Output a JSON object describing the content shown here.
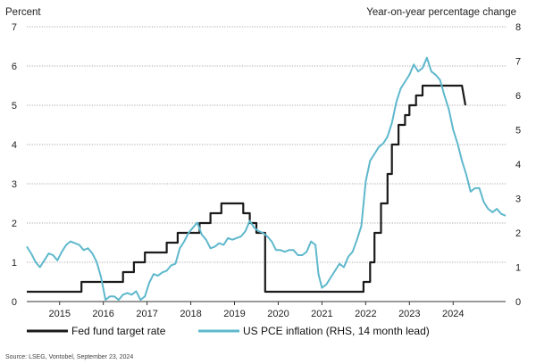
{
  "chart_data": {
    "type": "line",
    "left_axis": {
      "title": "Percent",
      "min": 0,
      "max": 7,
      "ticks": [
        "0",
        "1",
        "2",
        "3",
        "4",
        "5",
        "6",
        "7"
      ]
    },
    "right_axis": {
      "title": "Year-on-year percentage change",
      "min": 0,
      "max": 8,
      "ticks": [
        "0",
        "1",
        "2",
        "3",
        "4",
        "5",
        "6",
        "7",
        "8"
      ]
    },
    "x_axis": {
      "min": 2014.25,
      "max": 2025.2,
      "tick_labels": [
        "2015",
        "2016",
        "2017",
        "2018",
        "2019",
        "2020",
        "2021",
        "2022",
        "2023",
        "2024"
      ],
      "tick_positions": [
        2015,
        2016,
        2017,
        2018,
        2019,
        2020,
        2021,
        2022,
        2023,
        2024
      ]
    },
    "grid": "horizontal dotted",
    "series": [
      {
        "name": "Fed fund target rate",
        "axis": "left",
        "color": "#1a1a1a",
        "points": [
          [
            2014.25,
            0.25
          ],
          [
            2015.5,
            0.25
          ],
          [
            2015.5,
            0.5
          ],
          [
            2016.45,
            0.5
          ],
          [
            2016.45,
            0.75
          ],
          [
            2016.7,
            0.75
          ],
          [
            2016.7,
            1.0
          ],
          [
            2016.95,
            1.0
          ],
          [
            2016.95,
            1.25
          ],
          [
            2017.45,
            1.25
          ],
          [
            2017.45,
            1.5
          ],
          [
            2017.7,
            1.5
          ],
          [
            2017.7,
            1.75
          ],
          [
            2018.2,
            1.75
          ],
          [
            2018.2,
            2.0
          ],
          [
            2018.45,
            2.0
          ],
          [
            2018.45,
            2.25
          ],
          [
            2018.7,
            2.25
          ],
          [
            2018.7,
            2.5
          ],
          [
            2019.2,
            2.5
          ],
          [
            2019.2,
            2.25
          ],
          [
            2019.35,
            2.25
          ],
          [
            2019.35,
            2.0
          ],
          [
            2019.5,
            2.0
          ],
          [
            2019.5,
            1.75
          ],
          [
            2019.7,
            1.75
          ],
          [
            2019.7,
            0.25
          ],
          [
            2021.95,
            0.25
          ],
          [
            2021.95,
            0.5
          ],
          [
            2022.1,
            0.5
          ],
          [
            2022.1,
            1.0
          ],
          [
            2022.2,
            1.0
          ],
          [
            2022.2,
            1.75
          ],
          [
            2022.35,
            1.75
          ],
          [
            2022.35,
            2.5
          ],
          [
            2022.5,
            2.5
          ],
          [
            2022.5,
            3.25
          ],
          [
            2022.6,
            3.25
          ],
          [
            2022.6,
            4.0
          ],
          [
            2022.75,
            4.0
          ],
          [
            2022.75,
            4.5
          ],
          [
            2022.9,
            4.5
          ],
          [
            2022.9,
            4.75
          ],
          [
            2023.0,
            4.75
          ],
          [
            2023.0,
            5.0
          ],
          [
            2023.15,
            5.0
          ],
          [
            2023.15,
            5.25
          ],
          [
            2023.3,
            5.25
          ],
          [
            2023.3,
            5.5
          ],
          [
            2024.2,
            5.5
          ],
          [
            2024.28,
            5.0
          ]
        ]
      },
      {
        "name": "US PCE inflation (RHS, 14 month lead)",
        "axis": "right",
        "color": "#5eb8cc",
        "points": [
          [
            2014.25,
            1.6
          ],
          [
            2014.35,
            1.4
          ],
          [
            2014.45,
            1.15
          ],
          [
            2014.55,
            1.0
          ],
          [
            2014.65,
            1.2
          ],
          [
            2014.75,
            1.4
          ],
          [
            2014.85,
            1.35
          ],
          [
            2014.95,
            1.2
          ],
          [
            2015.05,
            1.45
          ],
          [
            2015.15,
            1.65
          ],
          [
            2015.25,
            1.75
          ],
          [
            2015.35,
            1.7
          ],
          [
            2015.45,
            1.65
          ],
          [
            2015.55,
            1.5
          ],
          [
            2015.65,
            1.55
          ],
          [
            2015.75,
            1.4
          ],
          [
            2015.85,
            1.15
          ],
          [
            2015.95,
            0.7
          ],
          [
            2016.05,
            0.05
          ],
          [
            2016.15,
            0.15
          ],
          [
            2016.25,
            0.15
          ],
          [
            2016.35,
            0.05
          ],
          [
            2016.45,
            0.2
          ],
          [
            2016.55,
            0.25
          ],
          [
            2016.65,
            0.2
          ],
          [
            2016.75,
            0.3
          ],
          [
            2016.85,
            0.05
          ],
          [
            2016.95,
            0.15
          ],
          [
            2017.05,
            0.55
          ],
          [
            2017.15,
            0.8
          ],
          [
            2017.25,
            0.75
          ],
          [
            2017.35,
            0.85
          ],
          [
            2017.45,
            0.9
          ],
          [
            2017.55,
            1.05
          ],
          [
            2017.65,
            1.1
          ],
          [
            2017.75,
            1.55
          ],
          [
            2017.85,
            1.75
          ],
          [
            2017.95,
            2.0
          ],
          [
            2018.05,
            2.15
          ],
          [
            2018.15,
            2.3
          ],
          [
            2018.25,
            1.95
          ],
          [
            2018.35,
            1.8
          ],
          [
            2018.45,
            1.55
          ],
          [
            2018.55,
            1.6
          ],
          [
            2018.65,
            1.7
          ],
          [
            2018.75,
            1.65
          ],
          [
            2018.85,
            1.85
          ],
          [
            2018.95,
            1.8
          ],
          [
            2019.05,
            1.85
          ],
          [
            2019.15,
            1.9
          ],
          [
            2019.25,
            2.05
          ],
          [
            2019.35,
            2.35
          ],
          [
            2019.45,
            2.15
          ],
          [
            2019.55,
            2.05
          ],
          [
            2019.65,
            2.0
          ],
          [
            2019.75,
            1.9
          ],
          [
            2019.85,
            1.75
          ],
          [
            2019.95,
            1.5
          ],
          [
            2020.05,
            1.5
          ],
          [
            2020.15,
            1.45
          ],
          [
            2020.25,
            1.5
          ],
          [
            2020.35,
            1.5
          ],
          [
            2020.45,
            1.35
          ],
          [
            2020.55,
            1.35
          ],
          [
            2020.65,
            1.45
          ],
          [
            2020.75,
            1.75
          ],
          [
            2020.85,
            1.65
          ],
          [
            2020.92,
            0.8
          ],
          [
            2021.0,
            0.4
          ],
          [
            2021.1,
            0.5
          ],
          [
            2021.2,
            0.7
          ],
          [
            2021.3,
            0.9
          ],
          [
            2021.4,
            1.1
          ],
          [
            2021.5,
            1.0
          ],
          [
            2021.6,
            1.3
          ],
          [
            2021.7,
            1.45
          ],
          [
            2021.8,
            1.8
          ],
          [
            2021.9,
            2.2
          ],
          [
            2022.0,
            3.5
          ],
          [
            2022.1,
            4.1
          ],
          [
            2022.2,
            4.3
          ],
          [
            2022.3,
            4.5
          ],
          [
            2022.4,
            4.6
          ],
          [
            2022.5,
            4.8
          ],
          [
            2022.6,
            5.2
          ],
          [
            2022.7,
            5.8
          ],
          [
            2022.8,
            6.2
          ],
          [
            2022.9,
            6.4
          ],
          [
            2023.0,
            6.6
          ],
          [
            2023.1,
            6.9
          ],
          [
            2023.2,
            6.7
          ],
          [
            2023.3,
            6.8
          ],
          [
            2023.4,
            7.1
          ],
          [
            2023.5,
            6.7
          ],
          [
            2023.6,
            6.6
          ],
          [
            2023.7,
            6.45
          ],
          [
            2023.8,
            6.0
          ],
          [
            2023.9,
            5.6
          ],
          [
            2024.0,
            5.0
          ],
          [
            2024.1,
            4.6
          ],
          [
            2024.2,
            4.1
          ],
          [
            2024.3,
            3.7
          ],
          [
            2024.4,
            3.2
          ],
          [
            2024.5,
            3.3
          ],
          [
            2024.6,
            3.3
          ],
          [
            2024.7,
            2.9
          ],
          [
            2024.8,
            2.7
          ],
          [
            2024.9,
            2.6
          ],
          [
            2025.0,
            2.7
          ],
          [
            2025.1,
            2.55
          ],
          [
            2025.2,
            2.5
          ]
        ]
      }
    ]
  },
  "source": "Source: LSEG, Vontobel, September 23, 2024"
}
